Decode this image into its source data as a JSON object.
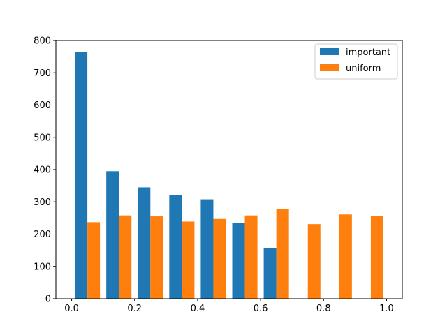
{
  "chart_data": {
    "type": "bar",
    "title": "",
    "xlabel": "",
    "ylabel": "",
    "grid": false,
    "legend_position": "top-right",
    "xlim": [
      -0.05,
      1.05
    ],
    "ylim": [
      0,
      800
    ],
    "x_ticks": [
      "0.0",
      "0.2",
      "0.4",
      "0.6",
      "0.8",
      "1.0"
    ],
    "y_ticks": [
      "0",
      "100",
      "200",
      "300",
      "400",
      "500",
      "600",
      "700",
      "800"
    ],
    "bin_edges": [
      0.0,
      0.1,
      0.2,
      0.3,
      0.4,
      0.5,
      0.6,
      0.7,
      0.8,
      0.9,
      1.0
    ],
    "series": [
      {
        "name": "important",
        "color": "#1f77b4",
        "values": [
          765,
          395,
          345,
          320,
          308,
          235,
          157,
          0,
          0,
          0
        ]
      },
      {
        "name": "uniform",
        "color": "#ff7f0e",
        "values": [
          237,
          258,
          255,
          239,
          247,
          258,
          278,
          231,
          261,
          256
        ]
      }
    ]
  }
}
